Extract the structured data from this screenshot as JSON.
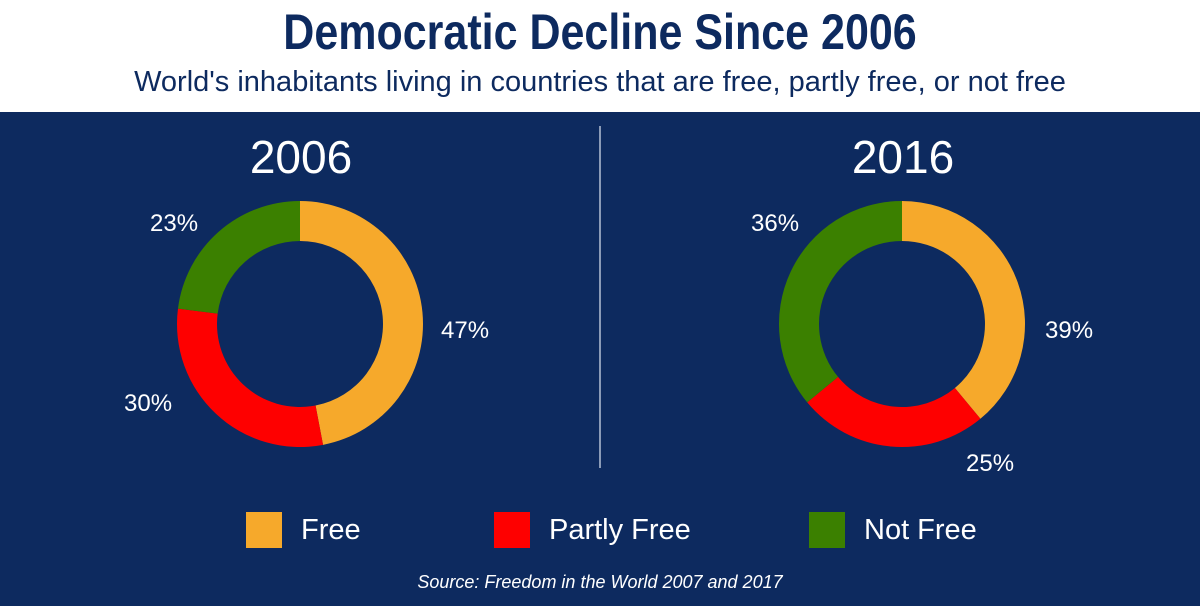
{
  "title": "Democratic Decline Since 2006",
  "subtitle": "World's inhabitants living in countries that are free, partly free, or not free",
  "colors": {
    "background": "#0d2a5f",
    "free": "#f6a92b",
    "partly_free": "#fe0000",
    "not_free": "#3b8000"
  },
  "chart_data": [
    {
      "type": "pie",
      "variant": "donut",
      "title": "2006",
      "categories": [
        "Free",
        "Partly Free",
        "Not Free"
      ],
      "values": [
        47,
        30,
        23
      ],
      "labels": [
        "47%",
        "30%",
        "23%"
      ]
    },
    {
      "type": "pie",
      "variant": "donut",
      "title": "2016",
      "categories": [
        "Free",
        "Partly Free",
        "Not Free"
      ],
      "values": [
        39,
        25,
        36
      ],
      "labels": [
        "39%",
        "25%",
        "36%"
      ]
    }
  ],
  "legend": [
    {
      "label": "Free"
    },
    {
      "label": "Partly Free"
    },
    {
      "label": "Not Free"
    }
  ],
  "source": "Source: Freedom in the World 2007 and 2017"
}
